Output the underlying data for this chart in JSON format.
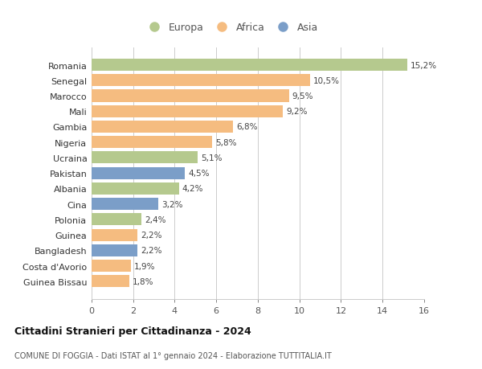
{
  "countries": [
    "Guinea Bissau",
    "Costa d'Avorio",
    "Bangladesh",
    "Guinea",
    "Polonia",
    "Cina",
    "Albania",
    "Pakistan",
    "Ucraina",
    "Nigeria",
    "Gambia",
    "Mali",
    "Marocco",
    "Senegal",
    "Romania"
  ],
  "values": [
    1.8,
    1.9,
    2.2,
    2.2,
    2.4,
    3.2,
    4.2,
    4.5,
    5.1,
    5.8,
    6.8,
    9.2,
    9.5,
    10.5,
    15.2
  ],
  "continents": [
    "Africa",
    "Africa",
    "Asia",
    "Africa",
    "Europa",
    "Asia",
    "Europa",
    "Asia",
    "Europa",
    "Africa",
    "Africa",
    "Africa",
    "Africa",
    "Africa",
    "Europa"
  ],
  "colors": {
    "Europa": "#b5c98e",
    "Africa": "#f5bc80",
    "Asia": "#7b9ec8"
  },
  "labels": [
    "1,8%",
    "1,9%",
    "2,2%",
    "2,2%",
    "2,4%",
    "3,2%",
    "4,2%",
    "4,5%",
    "5,1%",
    "5,8%",
    "6,8%",
    "9,2%",
    "9,5%",
    "10,5%",
    "15,2%"
  ],
  "title": "Cittadini Stranieri per Cittadinanza - 2024",
  "subtitle": "COMUNE DI FOGGIA - Dati ISTAT al 1° gennaio 2024 - Elaborazione TUTTITALIA.IT",
  "xlim": [
    0,
    16
  ],
  "xticks": [
    0,
    2,
    4,
    6,
    8,
    10,
    12,
    14,
    16
  ],
  "background_color": "#ffffff",
  "grid_color": "#cccccc",
  "bar_height": 0.78,
  "legend_order": [
    "Europa",
    "Africa",
    "Asia"
  ],
  "legend_colors": {
    "Europa": "#b5c98e",
    "Africa": "#f5bc80",
    "Asia": "#7b9ec8"
  }
}
